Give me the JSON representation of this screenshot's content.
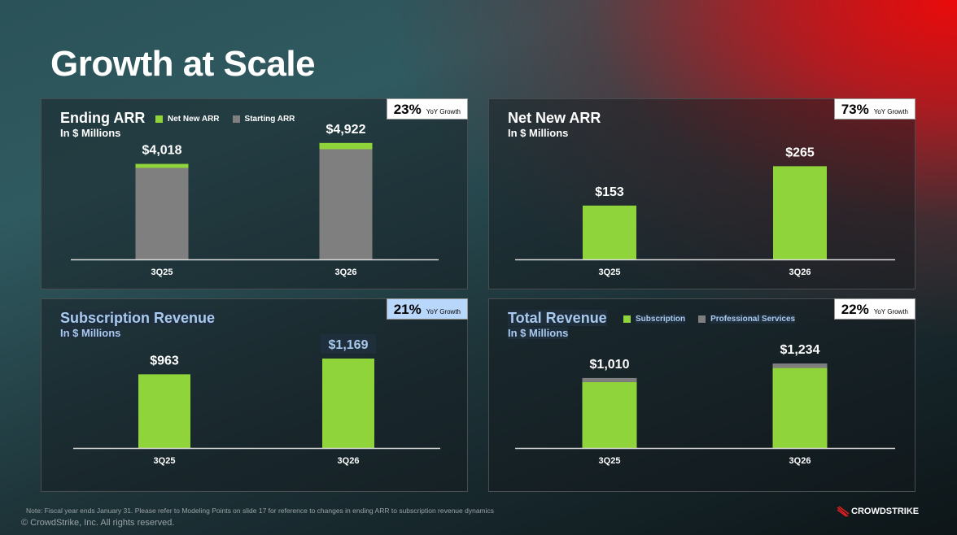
{
  "title": "Growth at Scale",
  "colors": {
    "green": "#8fd43a",
    "gray": "#7f7f7f",
    "axis": "#d8d8d8"
  },
  "chart_data": [
    {
      "type": "bar",
      "stacked": true,
      "title": "Ending ARR",
      "subtitle": "In $ Millions",
      "yoy": "23%",
      "yoy_label": "YoY Growth",
      "categories": [
        "3Q25",
        "3Q26"
      ],
      "series": [
        {
          "name": "Starting ARR",
          "color": "#7f7f7f",
          "values": [
            3865,
            4657
          ]
        },
        {
          "name": "Net New ARR",
          "color": "#8fd43a",
          "values": [
            153,
            265
          ]
        }
      ],
      "legend": [
        "Net New ARR",
        "Starting ARR"
      ],
      "data_labels": [
        "$4,018",
        "$4,922"
      ],
      "ylim": [
        0,
        5500
      ]
    },
    {
      "type": "bar",
      "title": "Net New ARR",
      "subtitle": "In $ Millions",
      "yoy": "73%",
      "yoy_label": "YoY Growth",
      "categories": [
        "3Q25",
        "3Q26"
      ],
      "series": [
        {
          "name": "Net New ARR",
          "color": "#8fd43a",
          "values": [
            153,
            265
          ]
        }
      ],
      "legend": [],
      "data_labels": [
        "$153",
        "$265"
      ],
      "ylim": [
        0,
        370
      ]
    },
    {
      "type": "bar",
      "title": "Subscription Revenue",
      "subtitle": "In $ Millions",
      "yoy": "21%",
      "yoy_label": "YoY Growth",
      "categories": [
        "3Q25",
        "3Q26"
      ],
      "series": [
        {
          "name": "Subscription",
          "color": "#8fd43a",
          "values": [
            963,
            1169
          ]
        }
      ],
      "legend": [],
      "data_labels": [
        "$963",
        "$1,169"
      ],
      "ylim": [
        0,
        1700
      ]
    },
    {
      "type": "bar",
      "stacked": true,
      "title": "Total Revenue",
      "subtitle": "In $ Millions",
      "yoy": "22%",
      "yoy_label": "YoY Growth",
      "categories": [
        "3Q25",
        "3Q26"
      ],
      "series": [
        {
          "name": "Subscription",
          "color": "#8fd43a",
          "values": [
            963,
            1169
          ]
        },
        {
          "name": "Professional Services",
          "color": "#7f7f7f",
          "values": [
            47,
            65
          ]
        }
      ],
      "legend": [
        "Subscription",
        "Professional Services"
      ],
      "data_labels": [
        "$1,010",
        "$1,234"
      ],
      "ylim": [
        0,
        1900
      ]
    }
  ],
  "footer": {
    "note": "Note: Fiscal year ends January 31. Please refer to Modeling Points on slide 17 for reference to changes in ending ARR to subscription revenue dynamics",
    "copyright": "© CrowdStrike, Inc. All rights reserved.",
    "logo": "CROWDSTRIKE"
  }
}
